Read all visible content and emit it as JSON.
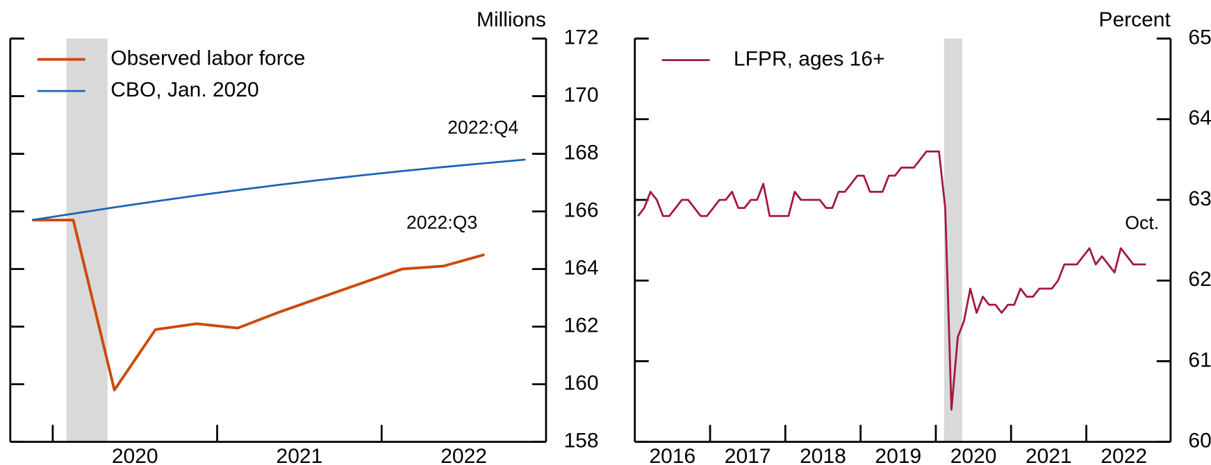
{
  "chart_data": [
    {
      "type": "line",
      "unit_label": "Millions",
      "xlim": [
        2019.742,
        2023.0
      ],
      "ylim": [
        158,
        172
      ],
      "yticks": [
        158,
        160,
        162,
        164,
        166,
        168,
        170,
        172
      ],
      "xticks": [
        {
          "value": 2020.5,
          "label": "2020"
        },
        {
          "value": 2021.5,
          "label": "2021"
        },
        {
          "value": 2022.5,
          "label": "2022"
        }
      ],
      "x_tick_marks": [
        2020,
        2021,
        2022
      ],
      "recession": [
        2020.083,
        2020.333
      ],
      "legend": "upper left",
      "x": [
        2019.875,
        2020.125,
        2020.375,
        2020.625,
        2020.875,
        2021.125,
        2021.375,
        2021.625,
        2021.875,
        2022.125,
        2022.375,
        2022.625,
        2022.875
      ],
      "series": [
        {
          "name": "Observed labor force",
          "color": "#cc4a0a",
          "width": 3.5,
          "values": [
            165.7,
            165.7,
            159.8,
            161.9,
            162.1,
            161.95,
            162.5,
            163.0,
            163.5,
            164.0,
            164.1,
            164.5,
            null
          ],
          "annotation": "2022:Q3"
        },
        {
          "name": "CBO, Jan. 2020",
          "color": "#1a64b8",
          "width": 2.5,
          "values": [
            165.7,
            165.92,
            166.14,
            166.35,
            166.55,
            166.74,
            166.92,
            167.09,
            167.25,
            167.4,
            167.54,
            167.67,
            167.8
          ],
          "annotation": "2022:Q4"
        }
      ]
    },
    {
      "type": "line",
      "unit_label": "Percent",
      "xlim": [
        2016.0,
        2023.12
      ],
      "ylim": [
        60,
        65
      ],
      "yticks": [
        60,
        61,
        62,
        63,
        64,
        65
      ],
      "xticks": [
        {
          "value": 2016.5,
          "label": "2016"
        },
        {
          "value": 2017.5,
          "label": "2017"
        },
        {
          "value": 2018.5,
          "label": "2018"
        },
        {
          "value": 2019.5,
          "label": "2019"
        },
        {
          "value": 2020.5,
          "label": "2020"
        },
        {
          "value": 2021.5,
          "label": "2021"
        },
        {
          "value": 2022.5,
          "label": "2022"
        }
      ],
      "x_tick_marks": [
        2017,
        2018,
        2019,
        2020,
        2021,
        2022
      ],
      "recession": [
        2020.11,
        2020.35
      ],
      "legend": "upper left",
      "x": [
        2016.042,
        2016.125,
        2016.208,
        2016.292,
        2016.375,
        2016.458,
        2016.542,
        2016.625,
        2016.708,
        2016.792,
        2016.875,
        2016.958,
        2017.042,
        2017.125,
        2017.208,
        2017.292,
        2017.375,
        2017.458,
        2017.542,
        2017.625,
        2017.708,
        2017.792,
        2017.875,
        2017.958,
        2018.042,
        2018.125,
        2018.208,
        2018.292,
        2018.375,
        2018.458,
        2018.542,
        2018.625,
        2018.708,
        2018.792,
        2018.875,
        2018.958,
        2019.042,
        2019.125,
        2019.208,
        2019.292,
        2019.375,
        2019.458,
        2019.542,
        2019.625,
        2019.708,
        2019.792,
        2019.875,
        2019.958,
        2020.042,
        2020.125,
        2020.208,
        2020.292,
        2020.375,
        2020.458,
        2020.542,
        2020.625,
        2020.708,
        2020.792,
        2020.875,
        2020.958,
        2021.042,
        2021.125,
        2021.208,
        2021.292,
        2021.375,
        2021.458,
        2021.542,
        2021.625,
        2021.708,
        2021.792,
        2021.875,
        2021.958,
        2022.042,
        2022.125,
        2022.208,
        2022.292,
        2022.375,
        2022.458,
        2022.542,
        2022.625,
        2022.708,
        2022.792
      ],
      "series": [
        {
          "name": "LFPR, ages 16+",
          "color": "#a3173b",
          "width": 2.5,
          "values": [
            62.8,
            62.9,
            63.1,
            63.0,
            62.8,
            62.8,
            62.9,
            63.0,
            63.0,
            62.9,
            62.8,
            62.8,
            62.9,
            63.0,
            63.0,
            63.1,
            62.9,
            62.9,
            63.0,
            63.0,
            63.2,
            62.8,
            62.8,
            62.8,
            62.8,
            63.1,
            63.0,
            63.0,
            63.0,
            63.0,
            62.9,
            62.9,
            63.1,
            63.1,
            63.2,
            63.3,
            63.3,
            63.1,
            63.1,
            63.1,
            63.3,
            63.3,
            63.4,
            63.4,
            63.4,
            63.5,
            63.6,
            63.6,
            63.6,
            62.9,
            60.4,
            61.3,
            61.5,
            61.9,
            61.6,
            61.8,
            61.7,
            61.7,
            61.6,
            61.7,
            61.7,
            61.9,
            61.8,
            61.8,
            61.9,
            61.9,
            61.9,
            62.0,
            62.2,
            62.2,
            62.2,
            62.3,
            62.4,
            62.2,
            62.3,
            62.2,
            62.1,
            62.4,
            62.3,
            62.2,
            62.2,
            62.2
          ],
          "annotation": "Oct."
        }
      ]
    }
  ]
}
